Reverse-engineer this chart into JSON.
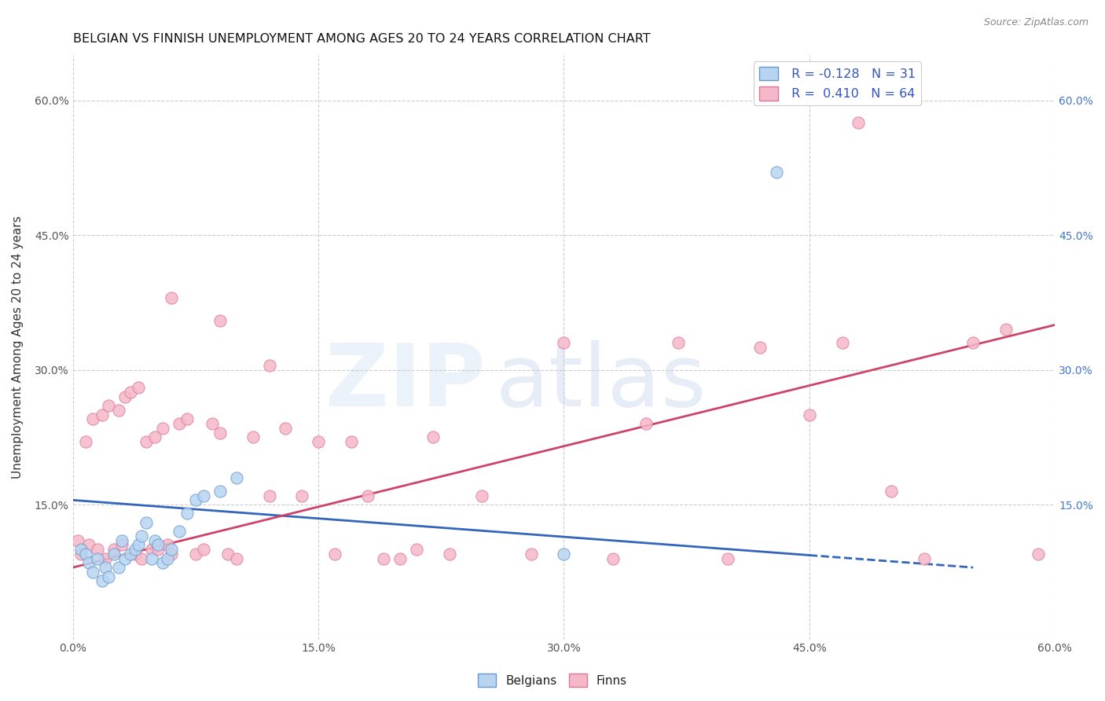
{
  "title": "BELGIAN VS FINNISH UNEMPLOYMENT AMONG AGES 20 TO 24 YEARS CORRELATION CHART",
  "source": "Source: ZipAtlas.com",
  "ylabel": "Unemployment Among Ages 20 to 24 years",
  "legend_belgian": "Belgians",
  "legend_finn": "Finns",
  "R_belgian": -0.128,
  "N_belgian": 31,
  "R_finn": 0.41,
  "N_finn": 64,
  "belgian_color": "#b8d4f0",
  "finn_color": "#f5b8c8",
  "belgian_edge_color": "#6699cc",
  "finn_edge_color": "#dd7799",
  "belgian_line_color": "#3366bb",
  "finn_line_color": "#cc4466",
  "watermark_zip": "ZIP",
  "watermark_atlas": "atlas",
  "belgians_x": [
    0.5,
    0.8,
    1.0,
    1.2,
    1.5,
    1.8,
    2.0,
    2.2,
    2.5,
    2.8,
    3.0,
    3.2,
    3.5,
    3.8,
    4.0,
    4.2,
    4.5,
    4.8,
    5.0,
    5.2,
    5.5,
    5.8,
    6.0,
    6.5,
    7.0,
    7.5,
    8.0,
    9.0,
    10.0,
    30.0,
    43.0
  ],
  "belgians_y": [
    10.0,
    9.5,
    8.5,
    7.5,
    9.0,
    6.5,
    8.0,
    7.0,
    9.5,
    8.0,
    11.0,
    9.0,
    9.5,
    10.0,
    10.5,
    11.5,
    13.0,
    9.0,
    11.0,
    10.5,
    8.5,
    9.0,
    10.0,
    12.0,
    14.0,
    15.5,
    16.0,
    16.5,
    18.0,
    9.5,
    52.0
  ],
  "finns_x": [
    0.3,
    0.5,
    0.8,
    1.0,
    1.2,
    1.5,
    1.8,
    2.0,
    2.2,
    2.5,
    2.8,
    3.0,
    3.2,
    3.5,
    3.8,
    4.0,
    4.2,
    4.5,
    4.8,
    5.0,
    5.2,
    5.5,
    5.8,
    6.0,
    6.5,
    7.0,
    7.5,
    8.0,
    8.5,
    9.0,
    9.5,
    10.0,
    11.0,
    12.0,
    13.0,
    14.0,
    15.0,
    16.0,
    17.0,
    18.0,
    19.0,
    20.0,
    21.0,
    22.0,
    23.0,
    25.0,
    28.0,
    30.0,
    33.0,
    35.0,
    37.0,
    40.0,
    42.0,
    45.0,
    47.0,
    50.0,
    52.0,
    55.0,
    57.0,
    59.0,
    6.0,
    9.0,
    12.0,
    48.0
  ],
  "finns_y": [
    11.0,
    9.5,
    22.0,
    10.5,
    24.5,
    10.0,
    25.0,
    9.0,
    26.0,
    10.0,
    25.5,
    10.5,
    27.0,
    27.5,
    9.5,
    28.0,
    9.0,
    22.0,
    10.0,
    22.5,
    10.0,
    23.5,
    10.5,
    9.5,
    24.0,
    24.5,
    9.5,
    10.0,
    24.0,
    23.0,
    9.5,
    9.0,
    22.5,
    16.0,
    23.5,
    16.0,
    22.0,
    9.5,
    22.0,
    16.0,
    9.0,
    9.0,
    10.0,
    22.5,
    9.5,
    16.0,
    9.5,
    33.0,
    9.0,
    24.0,
    33.0,
    9.0,
    32.5,
    25.0,
    33.0,
    16.5,
    9.0,
    33.0,
    34.5,
    9.5,
    38.0,
    35.5,
    30.5,
    57.5
  ],
  "xlim": [
    0,
    60
  ],
  "ylim": [
    0,
    65
  ],
  "xticks": [
    0,
    15,
    30,
    45,
    60
  ],
  "xticklabels": [
    "0.0%",
    "15.0%",
    "30.0%",
    "45.0%",
    "60.0%"
  ],
  "yticks_left": [
    0,
    15,
    30,
    45,
    60
  ],
  "yticklabels_left": [
    "",
    "15.0%",
    "30.0%",
    "45.0%",
    "60.0%"
  ],
  "yticks_right": [
    15,
    30,
    45,
    60
  ],
  "yticklabels_right": [
    "15.0%",
    "30.0%",
    "45.0%",
    "60.0%"
  ],
  "belgian_line_x0": 0,
  "belgian_line_y0": 15.5,
  "belgian_line_x1": 55,
  "belgian_line_y1": 8.0,
  "finn_line_x0": 0,
  "finn_line_y0": 8.0,
  "finn_line_x1": 60,
  "finn_line_y1": 35.0
}
